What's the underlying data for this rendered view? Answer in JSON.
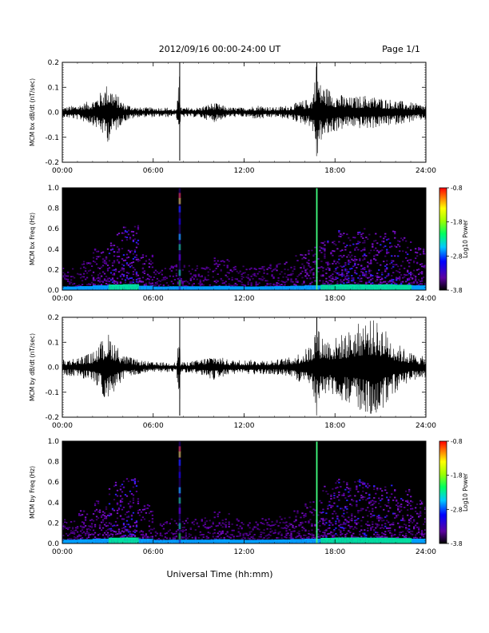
{
  "header": {
    "title": "2012/09/16  00:00-24:00 UT",
    "page": "Page 1/1"
  },
  "xaxis": {
    "label": "Universal Time (hh:mm)",
    "ticks": [
      "00:00",
      "06:00",
      "12:00",
      "18:00",
      "24:00"
    ],
    "range_hours": [
      0,
      24
    ]
  },
  "colors": {
    "trace": "#000000",
    "background": "#ffffff",
    "spectrogram_bg": "#000000"
  },
  "chart_data": [
    {
      "type": "line",
      "ylabel": "MCM bx dB/dt (nT/sec)",
      "ylim": [
        -0.2,
        0.2
      ],
      "yticks": [
        "-0.2",
        "-0.1",
        "0.0",
        "0.1",
        "0.2"
      ],
      "series": [
        {
          "x": [
            0,
            1,
            2,
            2.5,
            3,
            3.5,
            4,
            5,
            6,
            7,
            7.5,
            7.75,
            7.8,
            8,
            9,
            10,
            11,
            12,
            13,
            14,
            15,
            16,
            16.5,
            16.8,
            17,
            17.5,
            18,
            19,
            20,
            21,
            22,
            23,
            24
          ],
          "y": [
            0.02,
            0.03,
            0.05,
            0.08,
            0.12,
            0.08,
            0.04,
            0.02,
            0.02,
            0.02,
            0.01,
            -0.19,
            0.02,
            0.02,
            0.02,
            0.04,
            0.02,
            0.02,
            0.03,
            0.02,
            0.03,
            0.05,
            0.06,
            0.22,
            0.12,
            0.1,
            0.08,
            0.06,
            0.07,
            0.06,
            0.05,
            0.04,
            0.03
          ]
        }
      ],
      "markers_hours": [
        7.75,
        16.8
      ]
    },
    {
      "type": "heatmap",
      "ylabel": "MCM bx Freq (Hz)",
      "ylim": [
        0.0,
        1.0
      ],
      "yticks": [
        "0.0",
        "0.2",
        "0.4",
        "0.6",
        "0.8",
        "1.0"
      ],
      "colorbar": {
        "label": "Log10 Power",
        "ticks": [
          "-0.8",
          "-1.8",
          "-2.8",
          "-3.8"
        ],
        "range": [
          -3.8,
          -0.8
        ]
      },
      "activity_by_hour": [
        0.3,
        0.4,
        0.6,
        0.8,
        0.9,
        0.5,
        0.3,
        0.35,
        0.35,
        0.35,
        0.45,
        0.35,
        0.3,
        0.35,
        0.4,
        0.5,
        0.6,
        0.75,
        0.85,
        0.85,
        0.8,
        0.85,
        0.75,
        0.6
      ],
      "lines_hours": [
        7.75,
        16.8
      ]
    },
    {
      "type": "line",
      "ylabel": "MCM by dB/dt (nT/sec)",
      "ylim": [
        -0.2,
        0.2
      ],
      "yticks": [
        "-0.2",
        "-0.1",
        "0.0",
        "0.1",
        "0.2"
      ],
      "series": [
        {
          "x": [
            0,
            1,
            2,
            2.5,
            3,
            3.5,
            4,
            5,
            6,
            7,
            7.5,
            7.75,
            7.8,
            8,
            9,
            10,
            11,
            12,
            13,
            14,
            15,
            16,
            16.5,
            16.8,
            17,
            17.5,
            18,
            19,
            20,
            21,
            22,
            23,
            24
          ],
          "y": [
            0.03,
            0.04,
            0.06,
            0.1,
            0.14,
            0.1,
            0.05,
            0.03,
            0.02,
            0.02,
            0.02,
            -0.2,
            0.02,
            0.02,
            0.03,
            0.05,
            0.03,
            0.03,
            0.03,
            0.03,
            0.04,
            0.07,
            0.1,
            0.2,
            0.14,
            0.12,
            0.12,
            0.15,
            0.2,
            0.18,
            0.1,
            0.06,
            0.04
          ]
        }
      ],
      "markers_hours": [
        7.75,
        16.8
      ]
    },
    {
      "type": "heatmap",
      "ylabel": "MCM by Freq (Hz)",
      "ylim": [
        0.0,
        1.0
      ],
      "yticks": [
        "0.0",
        "0.2",
        "0.4",
        "0.6",
        "0.8",
        "1.0"
      ],
      "colorbar": {
        "label": "Log10 Power",
        "ticks": [
          "-0.8",
          "-1.8",
          "-2.8",
          "-3.8"
        ],
        "range": [
          -3.8,
          -0.8
        ]
      },
      "activity_by_hour": [
        0.35,
        0.45,
        0.6,
        0.85,
        0.9,
        0.55,
        0.3,
        0.35,
        0.35,
        0.35,
        0.45,
        0.35,
        0.3,
        0.35,
        0.4,
        0.5,
        0.6,
        0.8,
        0.9,
        0.9,
        0.85,
        0.85,
        0.75,
        0.6
      ],
      "lines_hours": [
        7.75,
        16.8
      ]
    }
  ]
}
